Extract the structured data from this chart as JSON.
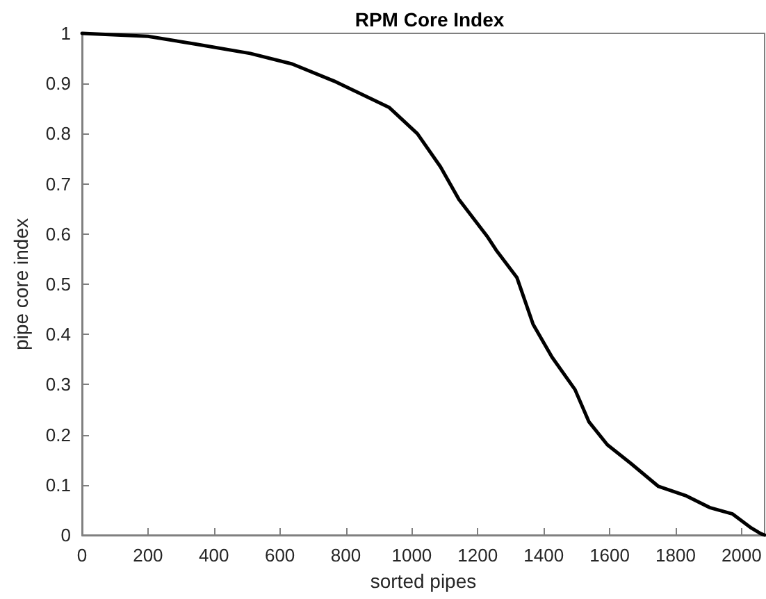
{
  "chart_data": {
    "type": "line",
    "title": "RPM Core Index",
    "xlabel": "sorted pipes",
    "ylabel": "pipe core index",
    "xlim": [
      0,
      2070
    ],
    "xticks": [
      0,
      200,
      400,
      600,
      800,
      1000,
      1200,
      1400,
      1600,
      1800,
      2000
    ],
    "ylim": [
      0,
      1
    ],
    "yticks": [
      0,
      0.1,
      0.2,
      0.3,
      0.4,
      0.5,
      0.6,
      0.7,
      0.8,
      0.9,
      1
    ],
    "grid": false,
    "marker": "none",
    "line_style": "solid",
    "series": [
      {
        "color": "#000000",
        "x": [
          0,
          200,
          342,
          510,
          637,
          764,
          932,
          1017,
          1087,
          1143,
          1228,
          1256,
          1319,
          1368,
          1425,
          1495,
          1537,
          1593,
          1664,
          1748,
          1833,
          1903,
          1973,
          2030,
          2058,
          2070
        ],
        "values": [
          1.0,
          0.994,
          0.979,
          0.96,
          0.939,
          0.905,
          0.852,
          0.8,
          0.734,
          0.669,
          0.596,
          0.568,
          0.513,
          0.42,
          0.355,
          0.29,
          0.226,
          0.18,
          0.143,
          0.097,
          0.078,
          0.055,
          0.042,
          0.014,
          0.003,
          0
        ]
      }
    ]
  }
}
